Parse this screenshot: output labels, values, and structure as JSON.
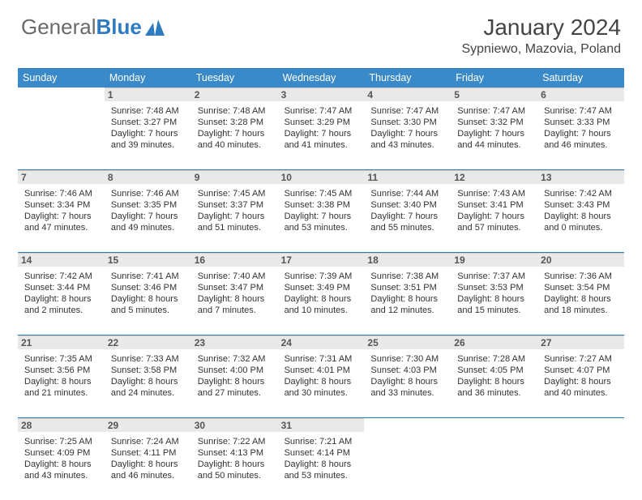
{
  "brand": {
    "part1": "General",
    "part2": "Blue"
  },
  "title": "January 2024",
  "location": "Sypniewo, Mazovia, Poland",
  "colors": {
    "header_bg": "#3a8ac9",
    "rule": "#2f7bbf",
    "daynum_bg": "#e9e9e9",
    "text": "#333333"
  },
  "day_names": [
    "Sunday",
    "Monday",
    "Tuesday",
    "Wednesday",
    "Thursday",
    "Friday",
    "Saturday"
  ],
  "weeks": [
    [
      {
        "n": "",
        "lines": [
          "",
          "",
          "",
          ""
        ]
      },
      {
        "n": "1",
        "lines": [
          "Sunrise: 7:48 AM",
          "Sunset: 3:27 PM",
          "Daylight: 7 hours",
          "and 39 minutes."
        ]
      },
      {
        "n": "2",
        "lines": [
          "Sunrise: 7:48 AM",
          "Sunset: 3:28 PM",
          "Daylight: 7 hours",
          "and 40 minutes."
        ]
      },
      {
        "n": "3",
        "lines": [
          "Sunrise: 7:47 AM",
          "Sunset: 3:29 PM",
          "Daylight: 7 hours",
          "and 41 minutes."
        ]
      },
      {
        "n": "4",
        "lines": [
          "Sunrise: 7:47 AM",
          "Sunset: 3:30 PM",
          "Daylight: 7 hours",
          "and 43 minutes."
        ]
      },
      {
        "n": "5",
        "lines": [
          "Sunrise: 7:47 AM",
          "Sunset: 3:32 PM",
          "Daylight: 7 hours",
          "and 44 minutes."
        ]
      },
      {
        "n": "6",
        "lines": [
          "Sunrise: 7:47 AM",
          "Sunset: 3:33 PM",
          "Daylight: 7 hours",
          "and 46 minutes."
        ]
      }
    ],
    [
      {
        "n": "7",
        "lines": [
          "Sunrise: 7:46 AM",
          "Sunset: 3:34 PM",
          "Daylight: 7 hours",
          "and 47 minutes."
        ]
      },
      {
        "n": "8",
        "lines": [
          "Sunrise: 7:46 AM",
          "Sunset: 3:35 PM",
          "Daylight: 7 hours",
          "and 49 minutes."
        ]
      },
      {
        "n": "9",
        "lines": [
          "Sunrise: 7:45 AM",
          "Sunset: 3:37 PM",
          "Daylight: 7 hours",
          "and 51 minutes."
        ]
      },
      {
        "n": "10",
        "lines": [
          "Sunrise: 7:45 AM",
          "Sunset: 3:38 PM",
          "Daylight: 7 hours",
          "and 53 minutes."
        ]
      },
      {
        "n": "11",
        "lines": [
          "Sunrise: 7:44 AM",
          "Sunset: 3:40 PM",
          "Daylight: 7 hours",
          "and 55 minutes."
        ]
      },
      {
        "n": "12",
        "lines": [
          "Sunrise: 7:43 AM",
          "Sunset: 3:41 PM",
          "Daylight: 7 hours",
          "and 57 minutes."
        ]
      },
      {
        "n": "13",
        "lines": [
          "Sunrise: 7:42 AM",
          "Sunset: 3:43 PM",
          "Daylight: 8 hours",
          "and 0 minutes."
        ]
      }
    ],
    [
      {
        "n": "14",
        "lines": [
          "Sunrise: 7:42 AM",
          "Sunset: 3:44 PM",
          "Daylight: 8 hours",
          "and 2 minutes."
        ]
      },
      {
        "n": "15",
        "lines": [
          "Sunrise: 7:41 AM",
          "Sunset: 3:46 PM",
          "Daylight: 8 hours",
          "and 5 minutes."
        ]
      },
      {
        "n": "16",
        "lines": [
          "Sunrise: 7:40 AM",
          "Sunset: 3:47 PM",
          "Daylight: 8 hours",
          "and 7 minutes."
        ]
      },
      {
        "n": "17",
        "lines": [
          "Sunrise: 7:39 AM",
          "Sunset: 3:49 PM",
          "Daylight: 8 hours",
          "and 10 minutes."
        ]
      },
      {
        "n": "18",
        "lines": [
          "Sunrise: 7:38 AM",
          "Sunset: 3:51 PM",
          "Daylight: 8 hours",
          "and 12 minutes."
        ]
      },
      {
        "n": "19",
        "lines": [
          "Sunrise: 7:37 AM",
          "Sunset: 3:53 PM",
          "Daylight: 8 hours",
          "and 15 minutes."
        ]
      },
      {
        "n": "20",
        "lines": [
          "Sunrise: 7:36 AM",
          "Sunset: 3:54 PM",
          "Daylight: 8 hours",
          "and 18 minutes."
        ]
      }
    ],
    [
      {
        "n": "21",
        "lines": [
          "Sunrise: 7:35 AM",
          "Sunset: 3:56 PM",
          "Daylight: 8 hours",
          "and 21 minutes."
        ]
      },
      {
        "n": "22",
        "lines": [
          "Sunrise: 7:33 AM",
          "Sunset: 3:58 PM",
          "Daylight: 8 hours",
          "and 24 minutes."
        ]
      },
      {
        "n": "23",
        "lines": [
          "Sunrise: 7:32 AM",
          "Sunset: 4:00 PM",
          "Daylight: 8 hours",
          "and 27 minutes."
        ]
      },
      {
        "n": "24",
        "lines": [
          "Sunrise: 7:31 AM",
          "Sunset: 4:01 PM",
          "Daylight: 8 hours",
          "and 30 minutes."
        ]
      },
      {
        "n": "25",
        "lines": [
          "Sunrise: 7:30 AM",
          "Sunset: 4:03 PM",
          "Daylight: 8 hours",
          "and 33 minutes."
        ]
      },
      {
        "n": "26",
        "lines": [
          "Sunrise: 7:28 AM",
          "Sunset: 4:05 PM",
          "Daylight: 8 hours",
          "and 36 minutes."
        ]
      },
      {
        "n": "27",
        "lines": [
          "Sunrise: 7:27 AM",
          "Sunset: 4:07 PM",
          "Daylight: 8 hours",
          "and 40 minutes."
        ]
      }
    ],
    [
      {
        "n": "28",
        "lines": [
          "Sunrise: 7:25 AM",
          "Sunset: 4:09 PM",
          "Daylight: 8 hours",
          "and 43 minutes."
        ]
      },
      {
        "n": "29",
        "lines": [
          "Sunrise: 7:24 AM",
          "Sunset: 4:11 PM",
          "Daylight: 8 hours",
          "and 46 minutes."
        ]
      },
      {
        "n": "30",
        "lines": [
          "Sunrise: 7:22 AM",
          "Sunset: 4:13 PM",
          "Daylight: 8 hours",
          "and 50 minutes."
        ]
      },
      {
        "n": "31",
        "lines": [
          "Sunrise: 7:21 AM",
          "Sunset: 4:14 PM",
          "Daylight: 8 hours",
          "and 53 minutes."
        ]
      },
      {
        "n": "",
        "lines": [
          "",
          "",
          "",
          ""
        ]
      },
      {
        "n": "",
        "lines": [
          "",
          "",
          "",
          ""
        ]
      },
      {
        "n": "",
        "lines": [
          "",
          "",
          "",
          ""
        ]
      }
    ]
  ]
}
